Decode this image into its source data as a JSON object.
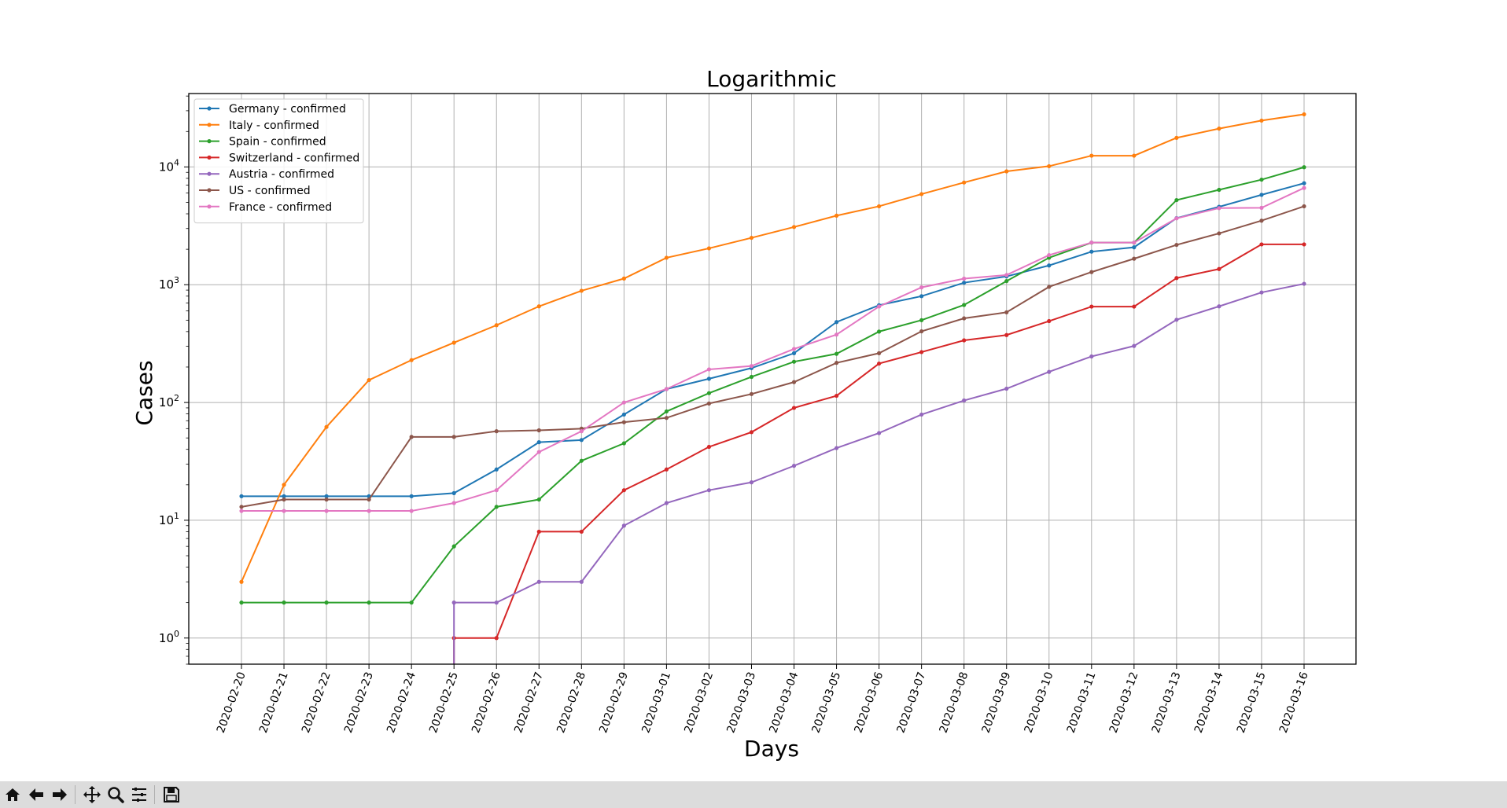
{
  "chart_data": {
    "type": "line",
    "title": "Logarithmic",
    "xlabel": "Days",
    "ylabel": "Cases",
    "yscale": "log",
    "ylim": [
      0.6,
      42000
    ],
    "grid": true,
    "legend_position": "top-left",
    "y_ticks": [
      {
        "base": "10",
        "exp": "0",
        "value": 1
      },
      {
        "base": "10",
        "exp": "1",
        "value": 10
      },
      {
        "base": "10",
        "exp": "2",
        "value": 100
      },
      {
        "base": "10",
        "exp": "3",
        "value": 1000
      },
      {
        "base": "10",
        "exp": "4",
        "value": 10000
      }
    ],
    "x": [
      "2020-02-20",
      "2020-02-21",
      "2020-02-22",
      "2020-02-23",
      "2020-02-24",
      "2020-02-25",
      "2020-02-26",
      "2020-02-27",
      "2020-02-28",
      "2020-02-29",
      "2020-03-01",
      "2020-03-02",
      "2020-03-03",
      "2020-03-04",
      "2020-03-05",
      "2020-03-06",
      "2020-03-07",
      "2020-03-08",
      "2020-03-09",
      "2020-03-10",
      "2020-03-11",
      "2020-03-12",
      "2020-03-13",
      "2020-03-14",
      "2020-03-15",
      "2020-03-16"
    ],
    "series": [
      {
        "name": "Germany - confirmed",
        "color": "#1f77b4",
        "values": [
          16,
          16,
          16,
          16,
          16,
          17,
          27,
          46,
          48,
          79,
          130,
          159,
          196,
          262,
          482,
          670,
          799,
          1040,
          1176,
          1457,
          1908,
          2078,
          3675,
          4585,
          5795,
          7272
        ]
      },
      {
        "name": "Italy - confirmed",
        "color": "#ff7f0e",
        "values": [
          3,
          20,
          62,
          155,
          229,
          322,
          453,
          655,
          888,
          1128,
          1694,
          2036,
          2502,
          3089,
          3858,
          4636,
          5883,
          7375,
          9172,
          10149,
          12462,
          12462,
          17660,
          21157,
          24747,
          27980
        ]
      },
      {
        "name": "Spain - confirmed",
        "color": "#2ca02c",
        "values": [
          2,
          2,
          2,
          2,
          2,
          6,
          13,
          15,
          32,
          45,
          84,
          120,
          165,
          222,
          259,
          400,
          500,
          673,
          1073,
          1695,
          2277,
          2277,
          5232,
          6391,
          7798,
          9942
        ]
      },
      {
        "name": "Switzerland - confirmed",
        "color": "#d62728",
        "values": [
          null,
          null,
          null,
          null,
          null,
          1,
          1,
          8,
          8,
          18,
          27,
          42,
          56,
          90,
          114,
          214,
          268,
          337,
          374,
          491,
          652,
          652,
          1139,
          1359,
          2200,
          2200
        ]
      },
      {
        "name": "Austria - confirmed",
        "color": "#9467bd",
        "values": [
          null,
          null,
          null,
          null,
          null,
          2,
          2,
          3,
          3,
          9,
          14,
          18,
          21,
          29,
          41,
          55,
          79,
          104,
          131,
          182,
          246,
          302,
          504,
          655,
          860,
          1018
        ]
      },
      {
        "name": "US - confirmed",
        "color": "#8c564b",
        "values": [
          13,
          15,
          15,
          15,
          51,
          51,
          57,
          58,
          60,
          68,
          74,
          98,
          118,
          149,
          217,
          262,
          402,
          518,
          583,
          959,
          1281,
          1663,
          2179,
          2727,
          3499,
          4632
        ]
      },
      {
        "name": "France - confirmed",
        "color": "#e377c2",
        "values": [
          12,
          12,
          12,
          12,
          12,
          14,
          18,
          38,
          57,
          100,
          130,
          191,
          204,
          285,
          377,
          653,
          949,
          1126,
          1209,
          1784,
          2281,
          2281,
          3661,
          4469,
          4499,
          6633
        ]
      }
    ]
  },
  "toolbar": {
    "buttons": [
      {
        "icon": "home-icon"
      },
      {
        "icon": "back-arrow-icon"
      },
      {
        "icon": "forward-arrow-icon"
      },
      {
        "icon": "pan-icon"
      },
      {
        "icon": "zoom-icon"
      },
      {
        "icon": "configure-subplots-icon"
      },
      {
        "icon": "save-icon"
      }
    ]
  }
}
